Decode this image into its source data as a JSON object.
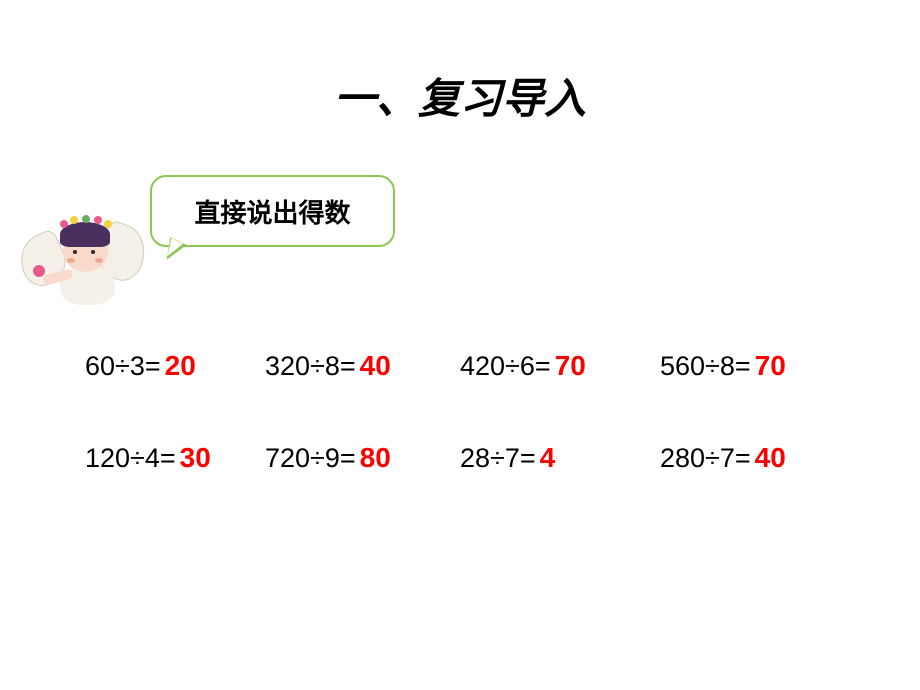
{
  "title": "一、复习导入",
  "bubble": {
    "text": "直接说出得数"
  },
  "styling": {
    "background": "#ffffff",
    "title_color": "#000000",
    "title_fontsize": 42,
    "bubble_border_color": "#8cc751",
    "bubble_text_color": "#000000",
    "bubble_fontsize": 26,
    "equation_color": "#000000",
    "equation_fontsize": 27,
    "answer_color": "#ff0000",
    "answer_fontsize": 28
  },
  "equations": {
    "row1": [
      {
        "expr": "60÷3=",
        "ans": "20"
      },
      {
        "expr": "320÷8=",
        "ans": "40"
      },
      {
        "expr": "420÷6=",
        "ans": "70"
      },
      {
        "expr": "560÷8=",
        "ans": "70"
      }
    ],
    "row2": [
      {
        "expr": "120÷4=",
        "ans": "30"
      },
      {
        "expr": "720÷9=",
        "ans": "80"
      },
      {
        "expr": "28÷7=",
        "ans": "4"
      },
      {
        "expr": "280÷7=",
        "ans": "40"
      }
    ]
  },
  "watermark": "."
}
